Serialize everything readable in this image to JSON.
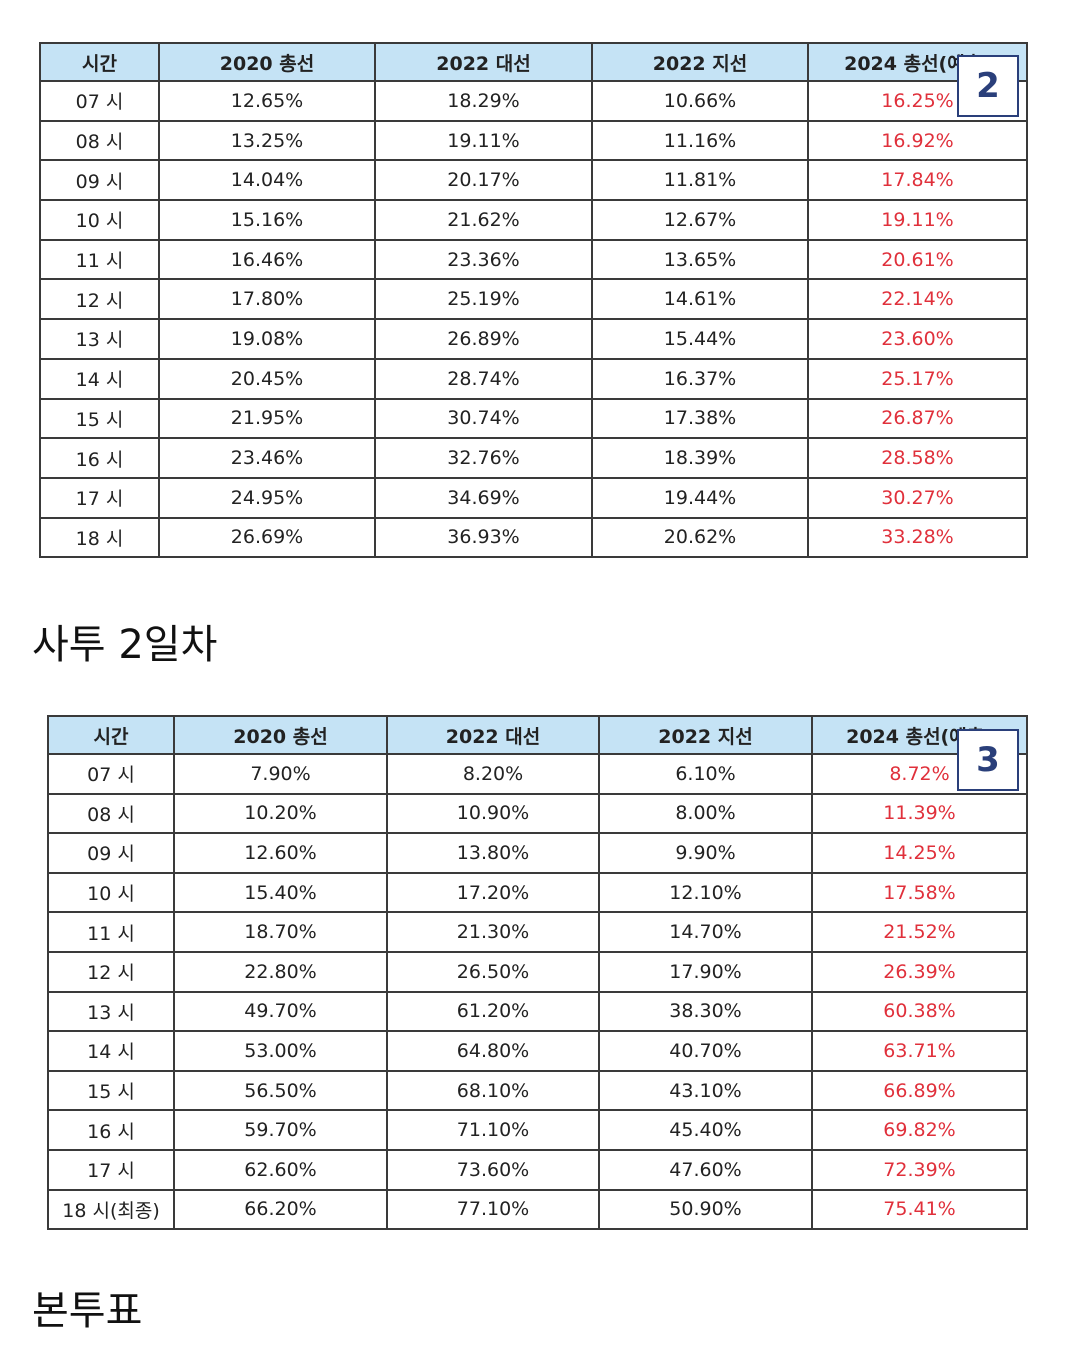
{
  "table1": {
    "headers": [
      "시간",
      "2020 총선",
      "2022 대선",
      "2022 지선",
      "2024 총선(예측)"
    ],
    "badge": "2",
    "rows": [
      [
        "07 시",
        "12.65%",
        "18.29%",
        "10.66%",
        "16.25%"
      ],
      [
        "08 시",
        "13.25%",
        "19.11%",
        "11.16%",
        "16.92%"
      ],
      [
        "09 시",
        "14.04%",
        "20.17%",
        "11.81%",
        "17.84%"
      ],
      [
        "10 시",
        "15.16%",
        "21.62%",
        "12.67%",
        "19.11%"
      ],
      [
        "11 시",
        "16.46%",
        "23.36%",
        "13.65%",
        "20.61%"
      ],
      [
        "12 시",
        "17.80%",
        "25.19%",
        "14.61%",
        "22.14%"
      ],
      [
        "13 시",
        "19.08%",
        "26.89%",
        "15.44%",
        "23.60%"
      ],
      [
        "14 시",
        "20.45%",
        "28.74%",
        "16.37%",
        "25.17%"
      ],
      [
        "15 시",
        "21.95%",
        "30.74%",
        "17.38%",
        "26.87%"
      ],
      [
        "16 시",
        "23.46%",
        "32.76%",
        "18.39%",
        "28.58%"
      ],
      [
        "17 시",
        "24.95%",
        "34.69%",
        "19.44%",
        "30.27%"
      ],
      [
        "18 시",
        "26.69%",
        "36.93%",
        "20.62%",
        "33.28%"
      ]
    ]
  },
  "heading1": "사투 2일차",
  "table2": {
    "headers": [
      "시간",
      "2020 총선",
      "2022 대선",
      "2022 지선",
      "2024 총선(예측)"
    ],
    "badge": "3",
    "rows": [
      [
        "07 시",
        "7.90%",
        "8.20%",
        "6.10%",
        "8.72%"
      ],
      [
        "08 시",
        "10.20%",
        "10.90%",
        "8.00%",
        "11.39%"
      ],
      [
        "09 시",
        "12.60%",
        "13.80%",
        "9.90%",
        "14.25%"
      ],
      [
        "10 시",
        "15.40%",
        "17.20%",
        "12.10%",
        "17.58%"
      ],
      [
        "11 시",
        "18.70%",
        "21.30%",
        "14.70%",
        "21.52%"
      ],
      [
        "12 시",
        "22.80%",
        "26.50%",
        "17.90%",
        "26.39%"
      ],
      [
        "13 시",
        "49.70%",
        "61.20%",
        "38.30%",
        "60.38%"
      ],
      [
        "14 시",
        "53.00%",
        "64.80%",
        "40.70%",
        "63.71%"
      ],
      [
        "15 시",
        "56.50%",
        "68.10%",
        "43.10%",
        "66.89%"
      ],
      [
        "16 시",
        "59.70%",
        "71.10%",
        "45.40%",
        "69.82%"
      ],
      [
        "17 시",
        "62.60%",
        "73.60%",
        "47.60%",
        "72.39%"
      ],
      [
        "18 시(최종)",
        "66.20%",
        "77.10%",
        "50.90%",
        "75.41%"
      ]
    ]
  },
  "heading2": "본투표",
  "colors": {
    "header_bg": "#c5e3f5",
    "prediction_text": "#e0303b",
    "badge_border": "#2a3f7a"
  }
}
